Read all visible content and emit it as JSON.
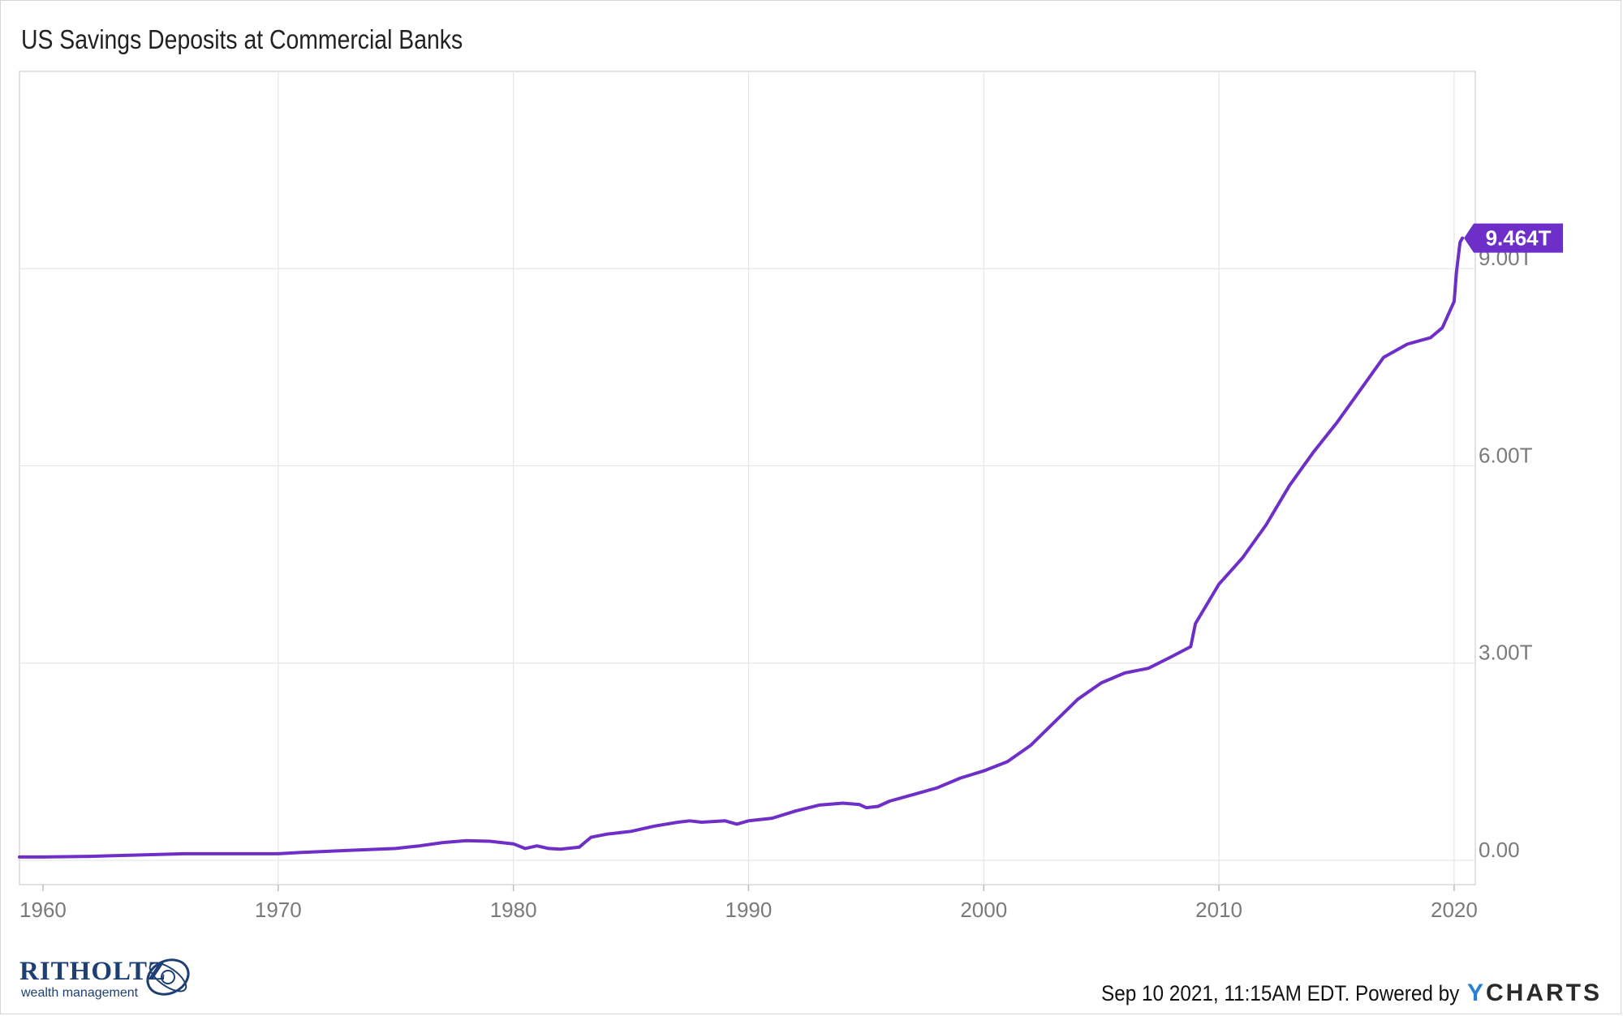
{
  "chart_data": {
    "type": "line",
    "title": "US Savings Deposits at Commercial Banks",
    "x_ticks": [
      "1960",
      "1970",
      "1980",
      "1990",
      "2000",
      "2010",
      "2020"
    ],
    "y_ticks": [
      "0.00",
      "3.00T",
      "6.00T",
      "9.00T"
    ],
    "xlim": [
      1959.0,
      2020.9
    ],
    "ylim": [
      -0.37,
      12.0
    ],
    "grid": true,
    "series": [
      {
        "color": "#6d2fc7",
        "x": [
          1959.0,
          1960.0,
          1962.0,
          1964.0,
          1966.0,
          1968.0,
          1970.0,
          1971.0,
          1973.0,
          1975.0,
          1976.0,
          1977.0,
          1978.0,
          1979.0,
          1980.0,
          1980.5,
          1981.0,
          1981.5,
          1982.0,
          1982.8,
          1983.0,
          1983.3,
          1984.0,
          1985.0,
          1986.0,
          1987.0,
          1987.5,
          1988.0,
          1989.0,
          1989.5,
          1990.0,
          1991.0,
          1992.0,
          1993.0,
          1994.0,
          1994.7,
          1995.0,
          1995.5,
          1996.0,
          1997.0,
          1998.0,
          1999.0,
          2000.0,
          2001.0,
          2002.0,
          2003.0,
          2004.0,
          2005.0,
          2006.0,
          2007.0,
          2008.0,
          2008.8,
          2009.0,
          2010.0,
          2011.0,
          2012.0,
          2013.0,
          2014.0,
          2015.0,
          2016.0,
          2017.0,
          2018.0,
          2018.5,
          2019.0,
          2019.5,
          2020.0,
          2020.1,
          2020.25,
          2020.35
        ],
        "y": [
          0.05,
          0.05,
          0.06,
          0.08,
          0.1,
          0.1,
          0.1,
          0.12,
          0.15,
          0.18,
          0.22,
          0.27,
          0.3,
          0.29,
          0.25,
          0.18,
          0.22,
          0.18,
          0.17,
          0.2,
          0.26,
          0.35,
          0.4,
          0.44,
          0.52,
          0.58,
          0.6,
          0.58,
          0.6,
          0.55,
          0.6,
          0.64,
          0.75,
          0.84,
          0.87,
          0.85,
          0.8,
          0.82,
          0.9,
          1.0,
          1.1,
          1.25,
          1.36,
          1.5,
          1.75,
          2.1,
          2.45,
          2.7,
          2.85,
          2.92,
          3.1,
          3.25,
          3.6,
          4.2,
          4.6,
          5.1,
          5.7,
          6.2,
          6.65,
          7.15,
          7.65,
          7.85,
          7.9,
          7.95,
          8.1,
          8.5,
          8.95,
          9.4,
          9.464
        ]
      }
    ],
    "end_label": "9.464T"
  },
  "footer": {
    "timestamp": "Sep 10 2021, 11:15AM EDT. Powered by",
    "brand_y": "Y",
    "brand_rest": "CHARTS"
  },
  "logo": {
    "name": "RITHOLTZ",
    "sub": "wealth management"
  }
}
